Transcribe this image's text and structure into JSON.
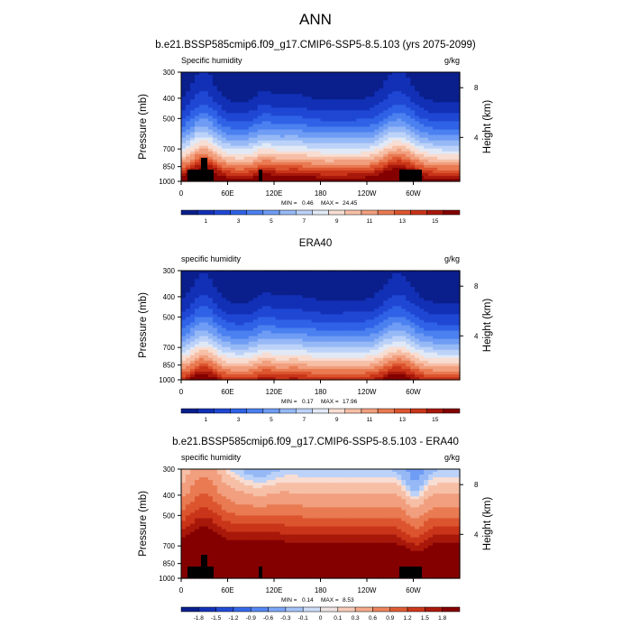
{
  "figure_title": "ANN",
  "colors": {
    "abs_scale": [
      "#0a1f8c",
      "#1230b6",
      "#1f47d4",
      "#2f62e6",
      "#4b80f0",
      "#6f9cf4",
      "#96b9f6",
      "#bcd2f8",
      "#e1e9f6",
      "#f8ddd2",
      "#f6bfa6",
      "#f19f7e",
      "#e97a52",
      "#dc552f",
      "#c93519",
      "#a8180a",
      "#840000"
    ],
    "diff_scale": [
      "#0a1f8c",
      "#1230b6",
      "#1f47d4",
      "#2f62e6",
      "#4b80f0",
      "#6f9cf4",
      "#96b9f6",
      "#bcd2f8",
      "#e1e9f6",
      "#f8ddd2",
      "#f6bfa6",
      "#f19f7e",
      "#e97a52",
      "#dc552f",
      "#c93519",
      "#a8180a",
      "#840000"
    ],
    "terrain": "#000000"
  },
  "chart_data": [
    {
      "type": "heatmap",
      "title": "b.e21.BSSP585cmip6.f09_g17.CMIP6-SSP5-8.5.103 (yrs 2075-2099)",
      "left_label": "Specific humidity",
      "right_label": "g/kg",
      "ylabel": "Pressure (mb)",
      "y2label": "Height (km)",
      "x_ticks": [
        "0",
        "60E",
        "120E",
        "180",
        "120W",
        "60W"
      ],
      "y_ticks": [
        "300",
        "400",
        "500",
        "700",
        "850",
        "1000"
      ],
      "y2_ticks": [
        "8",
        "4"
      ],
      "y_range": [
        1000,
        300
      ],
      "stats": {
        "min_label": "MIN =",
        "min": "0.46",
        "max_label": "MAX =",
        "max": "24.45"
      },
      "colorbar_labels": [
        "1",
        "3",
        "5",
        "7",
        "9",
        "11",
        "13",
        "15"
      ],
      "levels": [
        0,
        1,
        2,
        3,
        4,
        5,
        6,
        7,
        8,
        9,
        10,
        11,
        12,
        13,
        14,
        15,
        16
      ],
      "show_terrain": true
    },
    {
      "type": "heatmap",
      "title": "ERA40",
      "left_label": "specific humidity",
      "right_label": "g/kg",
      "ylabel": "Pressure (mb)",
      "y2label": "Height (km)",
      "x_ticks": [
        "0",
        "60E",
        "120E",
        "180",
        "120W",
        "60W"
      ],
      "y_ticks": [
        "300",
        "400",
        "500",
        "700",
        "850",
        "1000"
      ],
      "y2_ticks": [
        "8",
        "4"
      ],
      "y_range": [
        1000,
        300
      ],
      "stats": {
        "min_label": "MIN =",
        "min": "0.17",
        "max_label": "MAX =",
        "max": "17.96"
      },
      "colorbar_labels": [
        "1",
        "3",
        "5",
        "7",
        "9",
        "11",
        "13",
        "15"
      ],
      "levels": [
        0,
        1,
        2,
        3,
        4,
        5,
        6,
        7,
        8,
        9,
        10,
        11,
        12,
        13,
        14,
        15,
        16
      ],
      "show_terrain": false
    },
    {
      "type": "heatmap",
      "title": "b.e21.BSSP585cmip6.f09_g17.CMIP6-SSP5-8.5.103 - ERA40",
      "left_label": "specific humidity",
      "right_label": "g/kg",
      "ylabel": "Pressure (mb)",
      "y2label": "Height (km)",
      "x_ticks": [
        "0",
        "60E",
        "120E",
        "180",
        "120W",
        "60W"
      ],
      "y_ticks": [
        "300",
        "400",
        "500",
        "700",
        "850",
        "1000"
      ],
      "y2_ticks": [
        "8",
        "4"
      ],
      "y_range": [
        1000,
        300
      ],
      "stats": {
        "min_label": "MIN =",
        "min": "0.14",
        "max_label": "MAX =",
        "max": "8.53"
      },
      "colorbar_labels": [
        "-1.8",
        "-1.5",
        "-1.2",
        "-0.9",
        "-0.6",
        "-0.3",
        "-0.1",
        "0",
        "0.1",
        "0.3",
        "0.6",
        "0.9",
        "1.2",
        "1.5",
        "1.8"
      ],
      "levels": [
        -1.8,
        -1.5,
        -1.2,
        -0.9,
        -0.6,
        -0.3,
        -0.1,
        0,
        0.1,
        0.3,
        0.6,
        0.9,
        1.2,
        1.5,
        1.8
      ],
      "show_terrain": true
    }
  ]
}
